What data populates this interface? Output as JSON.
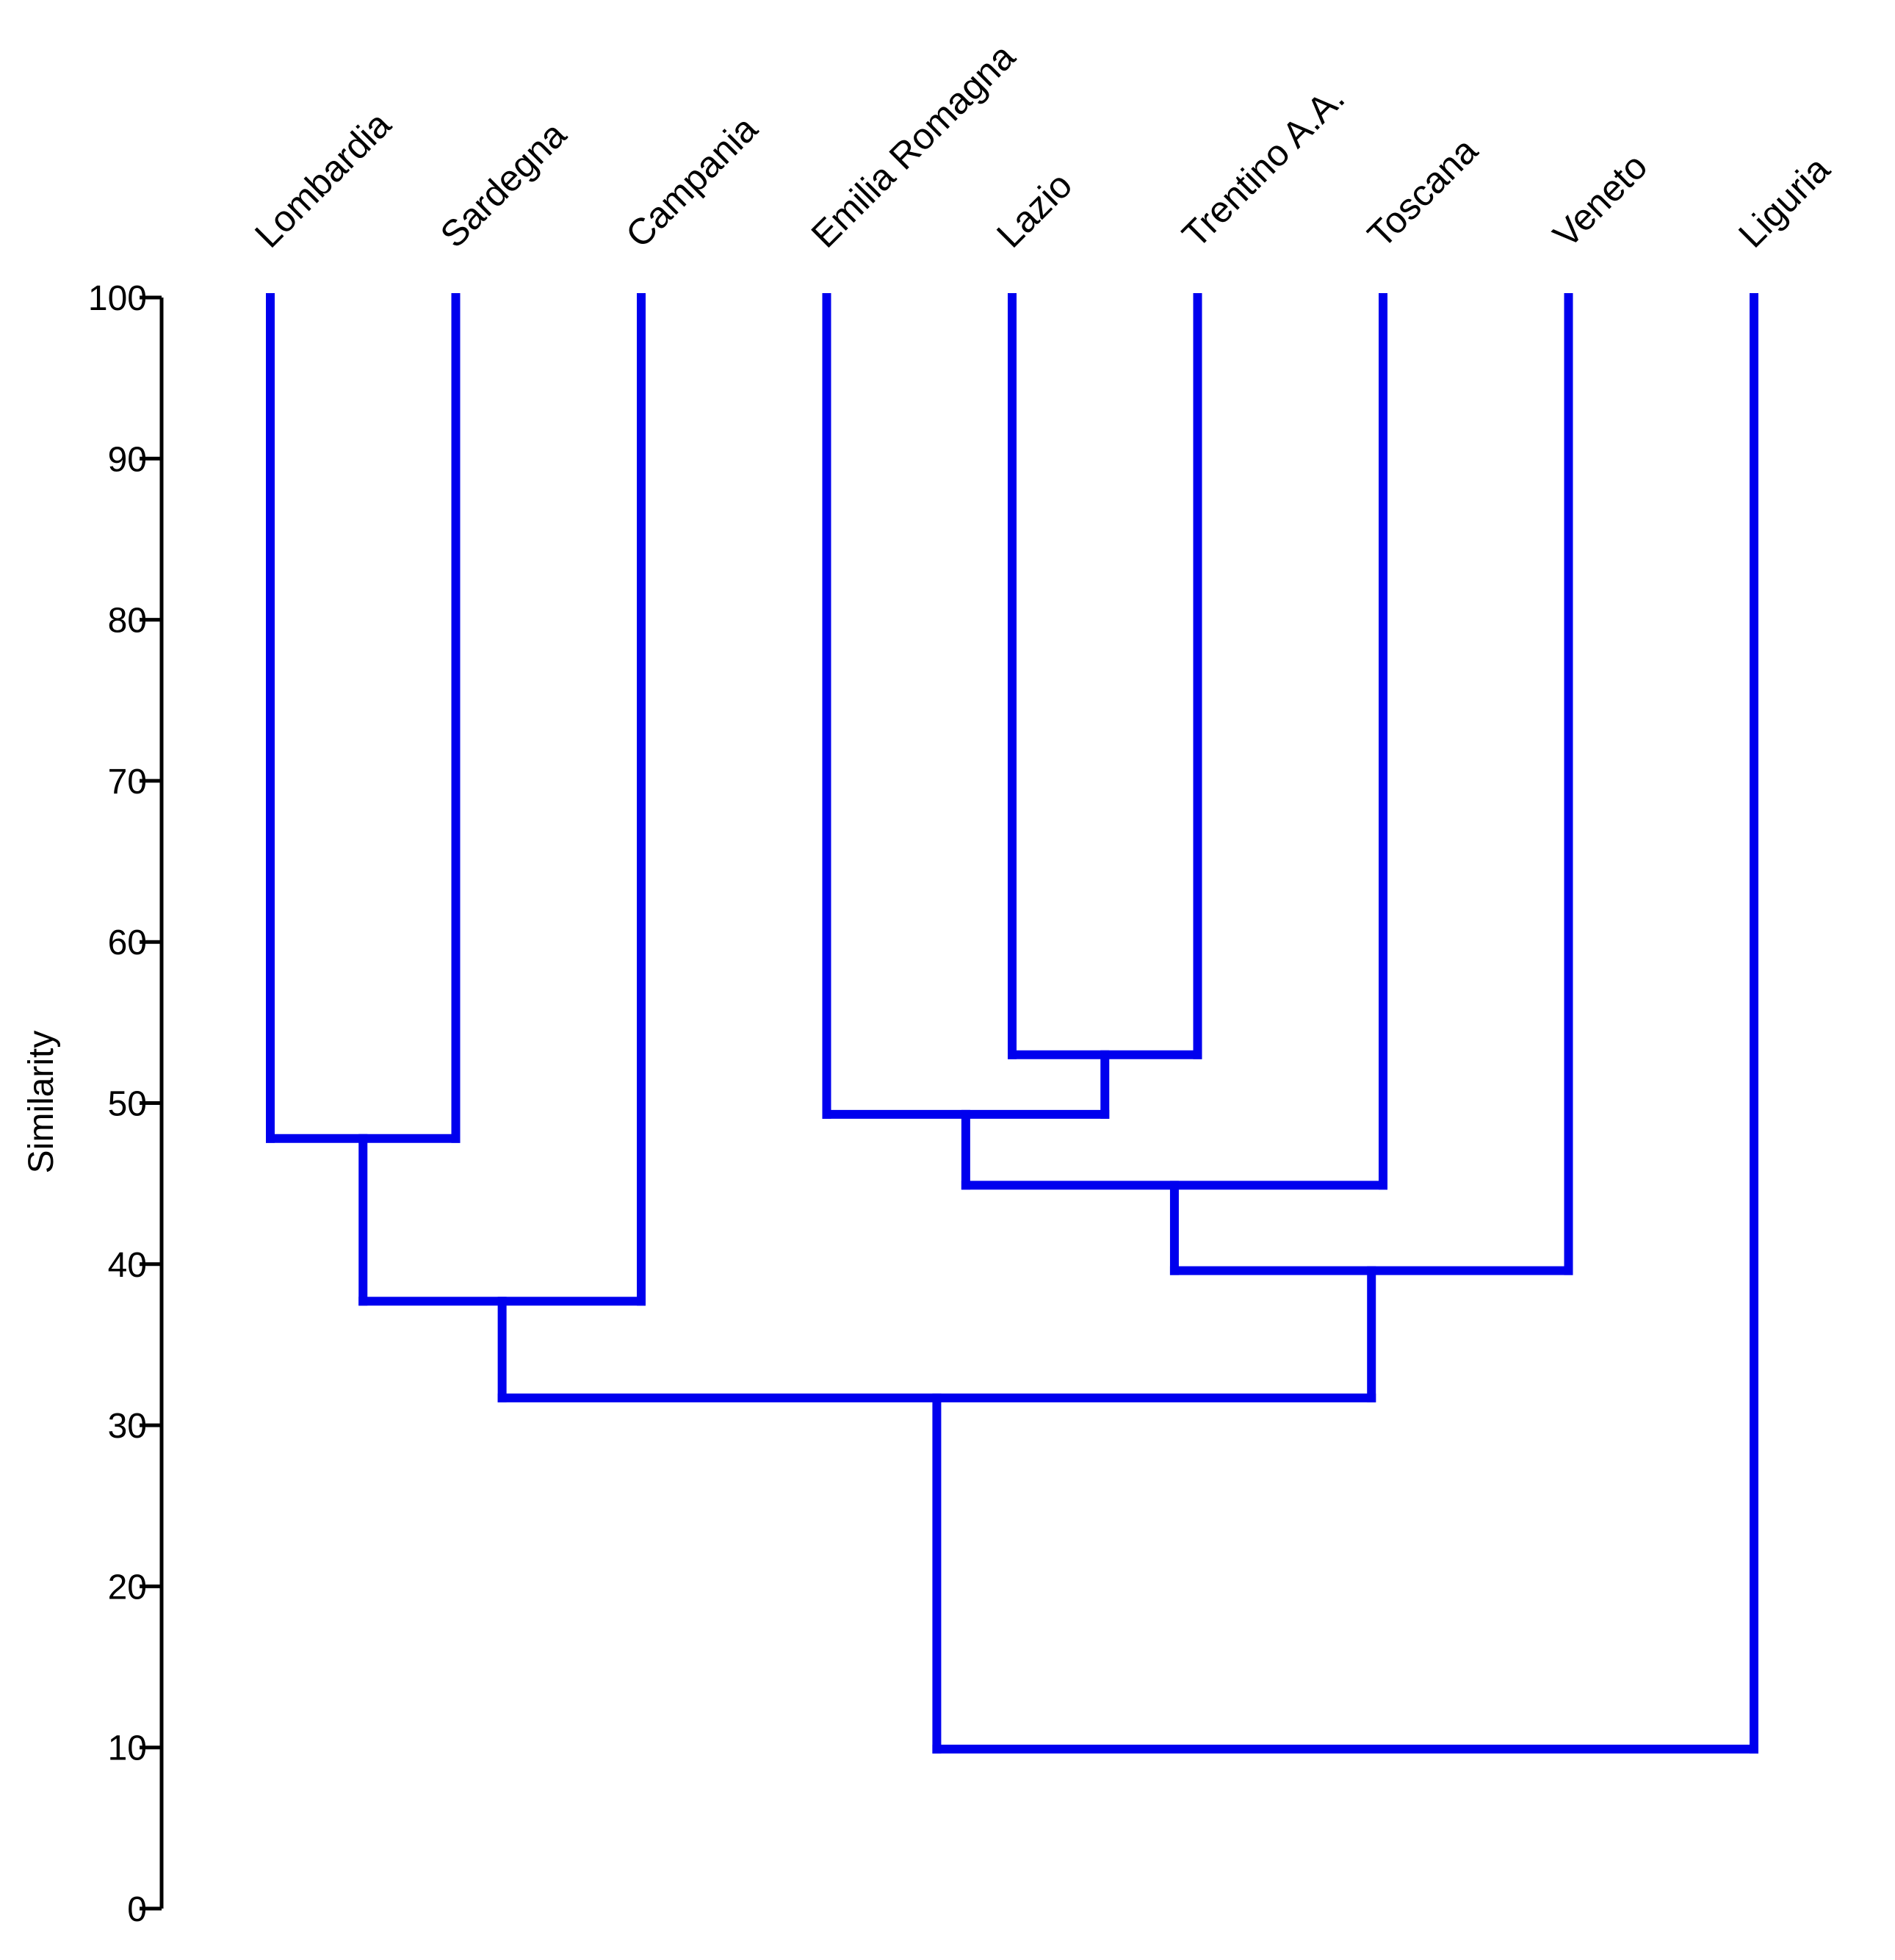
{
  "chart_data": {
    "type": "dendrogram",
    "title": "",
    "xlabel": "",
    "ylabel": "Similarity",
    "ylim": [
      0,
      100
    ],
    "yticks": [
      0,
      10,
      20,
      30,
      40,
      50,
      60,
      70,
      80,
      90,
      100
    ],
    "line_color": "#0000ee",
    "leaves": [
      "Lombardia",
      "Sardegna",
      "Campania",
      "Emilia Romagna",
      "Lazio",
      "Trentino A.A.",
      "Toscana",
      "Veneto",
      "Liguria"
    ],
    "merges": [
      {
        "left": "Lombardia",
        "right": "Sardegna",
        "similarity": 47.8
      },
      {
        "left": "Lombardia+Sardegna",
        "right": "Campania",
        "similarity": 37.7
      },
      {
        "left": "Lazio",
        "right": "Trentino A.A.",
        "similarity": 53.0
      },
      {
        "left": "Emilia Romagna",
        "right": "Lazio+Trentino A.A.",
        "similarity": 49.3
      },
      {
        "left": "Emilia Romagna+Lazio+Trentino A.A.",
        "right": "Toscana",
        "similarity": 44.9
      },
      {
        "left": "Emilia Romagna+Lazio+Trentino A.A.+Toscana",
        "right": "Veneto",
        "similarity": 39.6
      },
      {
        "left": "Lombardia+Sardegna+Campania",
        "right": "Emilia Romagna+Lazio+Trentino A.A.+Toscana+Veneto",
        "similarity": 31.7
      },
      {
        "left": "all-other-regions",
        "right": "Liguria",
        "similarity": 9.9
      }
    ]
  }
}
